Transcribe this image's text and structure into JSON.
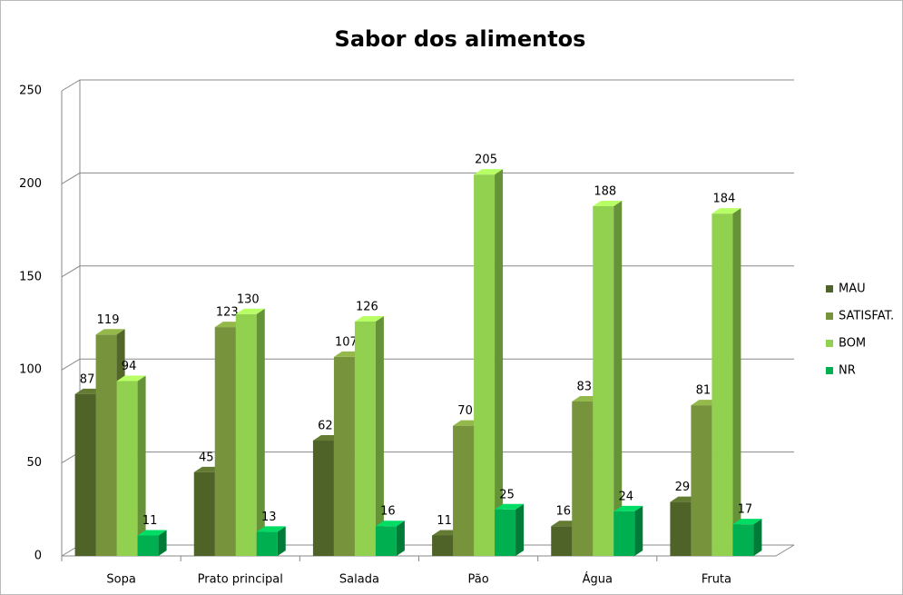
{
  "chart_data": {
    "type": "bar3d",
    "title": "Sabor dos alimentos",
    "categories": [
      "Sopa",
      "Prato principal",
      "Salada",
      "Pão",
      "Água",
      "Fruta"
    ],
    "series": [
      {
        "name": "MAU",
        "color": "#4f6228",
        "values": [
          87,
          45,
          62,
          11,
          16,
          29
        ]
      },
      {
        "name": "SATISFAT.",
        "color": "#77933c",
        "values": [
          119,
          123,
          107,
          70,
          83,
          81
        ]
      },
      {
        "name": "BOM",
        "color": "#92d050",
        "values": [
          94,
          130,
          126,
          205,
          188,
          184
        ]
      },
      {
        "name": "NR",
        "color": "#00b050",
        "values": [
          11,
          13,
          16,
          25,
          24,
          17
        ]
      }
    ],
    "ylim": [
      0,
      250
    ],
    "yticks": [
      0,
      50,
      100,
      150,
      200,
      250
    ],
    "grid": true,
    "legend": "right"
  }
}
